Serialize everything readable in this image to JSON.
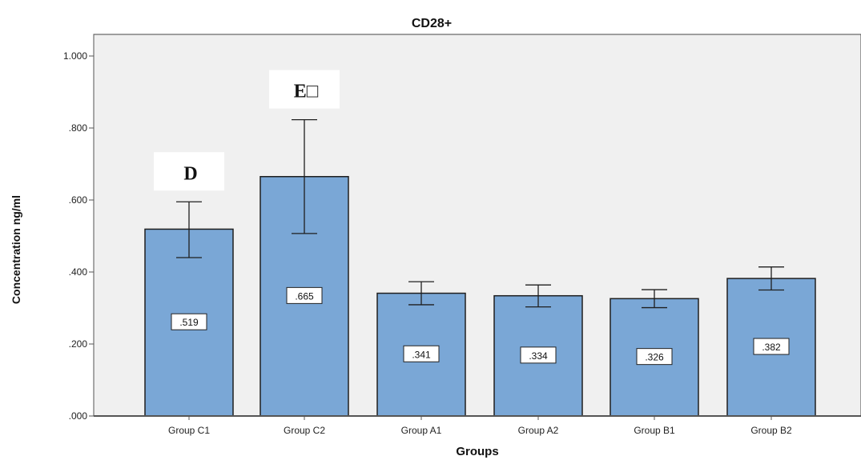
{
  "chart_data": {
    "type": "bar",
    "title": "CD28+",
    "xlabel": "Groups",
    "ylabel": "Concentration ng/ml",
    "categories": [
      "Group C1",
      "Group C2",
      "Group A1",
      "Group A2",
      "Group B1",
      "Group B2"
    ],
    "values": [
      0.519,
      0.665,
      0.341,
      0.334,
      0.326,
      0.382
    ],
    "value_labels": [
      ".519",
      ".665",
      ".341",
      ".334",
      ".326",
      ".382"
    ],
    "error_bars": [
      {
        "low": 0.44,
        "high": 0.595
      },
      {
        "low": 0.507,
        "high": 0.823
      },
      {
        "low": 0.309,
        "high": 0.373
      },
      {
        "low": 0.303,
        "high": 0.364
      },
      {
        "low": 0.301,
        "high": 0.351
      },
      {
        "low": 0.35,
        "high": 0.414
      }
    ],
    "ylim": [
      0,
      1.0
    ],
    "yticks": [
      0,
      0.2,
      0.4,
      0.6,
      0.8,
      1.0
    ],
    "ytick_labels": [
      ".000",
      ".200",
      ".400",
      ".600",
      ".800",
      "1.000"
    ],
    "annotations": [
      {
        "category": "Group C1",
        "text": "D"
      },
      {
        "category": "Group C2",
        "text": "E□"
      }
    ],
    "grid": false,
    "colors": {
      "bar_fill": "#7aa7d6",
      "bar_stroke": "#1f1f1f",
      "plot_background": "#f0f0f0",
      "error_bar": "#1f1f1f"
    }
  }
}
